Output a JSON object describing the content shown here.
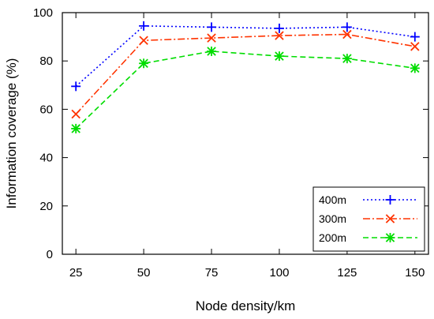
{
  "chart_data": {
    "type": "line",
    "title": "",
    "xlabel": "Node density/km",
    "ylabel": "Information coverage (%)",
    "x": [
      25,
      50,
      75,
      100,
      125,
      150
    ],
    "xticks": [
      "25",
      "50",
      "75",
      "100",
      "125",
      "150"
    ],
    "yticks": [
      "0",
      "20",
      "40",
      "60",
      "80",
      "100"
    ],
    "ylim": [
      0,
      100
    ],
    "grid": false,
    "legend_position": "bottom-right",
    "series": [
      {
        "name": "400m",
        "values": [
          69.5,
          94.5,
          94,
          93.5,
          94,
          90
        ],
        "color": "#0000ff",
        "marker": "plus",
        "dash": "dotted"
      },
      {
        "name": "300m",
        "values": [
          58,
          88.5,
          89.5,
          90.5,
          91,
          86
        ],
        "color": "#ff3300",
        "marker": "x",
        "dash": "dashdot"
      },
      {
        "name": "200m",
        "values": [
          52,
          79,
          84,
          82,
          81,
          77
        ],
        "color": "#00dd00",
        "marker": "star",
        "dash": "dashed"
      }
    ]
  }
}
